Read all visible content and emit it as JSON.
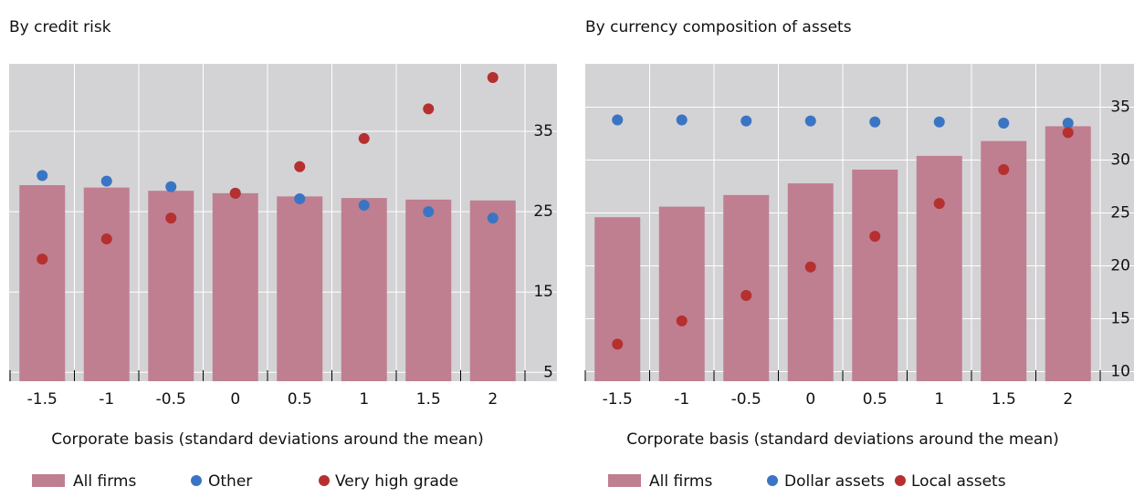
{
  "chart_data": [
    {
      "type": "bar",
      "title": "By credit risk",
      "x_label": "Corporate basis (standard deviations around the mean)",
      "categories": [
        "-1.5",
        "-1",
        "-0.5",
        "0",
        "0.5",
        "1",
        "1.5",
        "2"
      ],
      "ylim": [
        3.9,
        43.4
      ],
      "yticks": [
        5,
        15,
        25,
        35
      ],
      "grid": true,
      "series": [
        {
          "name": "All firms",
          "type": "bar",
          "color": "#bf7f91",
          "values": [
            28.3,
            28.0,
            27.6,
            27.3,
            26.9,
            26.7,
            26.5,
            26.4
          ]
        },
        {
          "name": "Other",
          "type": "scatter",
          "color": "#3a75c4",
          "values": [
            29.5,
            28.8,
            28.1,
            27.3,
            26.6,
            25.8,
            25.0,
            24.2
          ]
        },
        {
          "name": "Very high grade",
          "type": "scatter",
          "color": "#b5302f",
          "values": [
            19.1,
            21.6,
            24.2,
            27.3,
            30.6,
            34.1,
            37.8,
            41.7
          ]
        }
      ]
    },
    {
      "type": "bar",
      "title": "By currency composition of assets",
      "x_label": "Corporate basis (standard deviations around the mean)",
      "categories": [
        "-1.5",
        "-1",
        "-0.5",
        "0",
        "0.5",
        "1",
        "1.5",
        "2"
      ],
      "ylim": [
        9.1,
        39.1
      ],
      "yticks": [
        10,
        15,
        20,
        25,
        30,
        35
      ],
      "grid": true,
      "series": [
        {
          "name": "All firms",
          "type": "bar",
          "color": "#bf7f91",
          "values": [
            24.6,
            25.6,
            26.7,
            27.8,
            29.1,
            30.4,
            31.8,
            33.2
          ]
        },
        {
          "name": "Dollar assets",
          "type": "scatter",
          "color": "#3a75c4",
          "values": [
            33.8,
            33.8,
            33.7,
            33.7,
            33.6,
            33.6,
            33.5,
            33.5
          ]
        },
        {
          "name": "Local assets",
          "type": "scatter",
          "color": "#b5302f",
          "values": [
            12.6,
            14.8,
            17.2,
            19.9,
            22.8,
            25.9,
            29.1,
            32.6
          ]
        }
      ]
    }
  ]
}
